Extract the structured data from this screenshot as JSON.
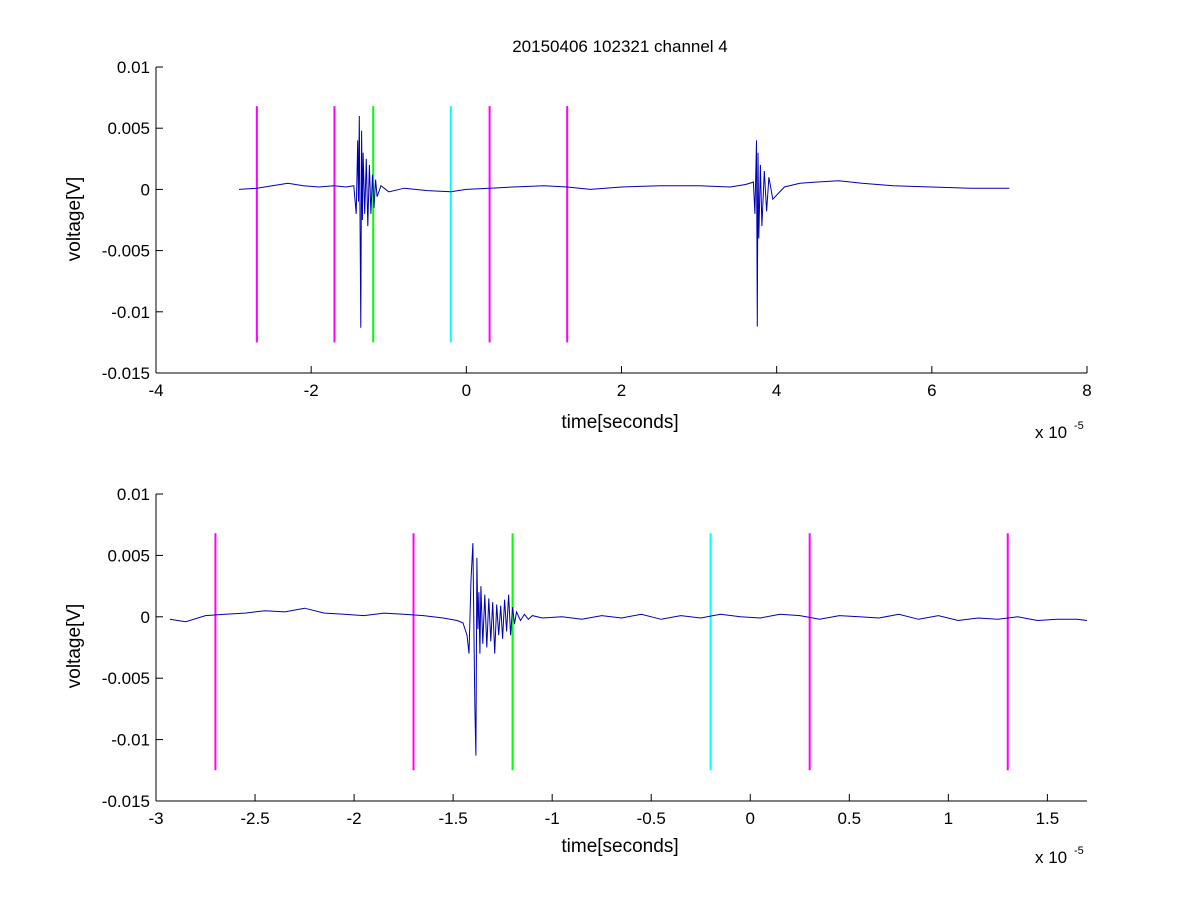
{
  "figure": {
    "title": "20150406 102321 channel 4",
    "signal_color": "#0000b4"
  },
  "chart_data": [
    {
      "type": "line",
      "title": "20150406 102321 channel 4",
      "xlabel": "time[seconds]",
      "ylabel": "voltage[V]",
      "x_exponent_label": "x 10",
      "x_exponent": "-5",
      "x_scale": 1e-05,
      "xlim": [
        -4,
        8
      ],
      "ylim": [
        -0.015,
        0.01
      ],
      "xticks": [
        -4,
        -2,
        0,
        2,
        4,
        6,
        8
      ],
      "xtick_labels": [
        "-4",
        "-2",
        "0",
        "2",
        "4",
        "6",
        "8"
      ],
      "yticks": [
        0.01,
        0.005,
        0,
        -0.005,
        -0.01,
        -0.015
      ],
      "ytick_labels": [
        "0.01",
        "0.005",
        "0",
        "-0.005",
        "-0.01",
        "-0.015"
      ],
      "grid": false,
      "series": [
        {
          "x": [
            -2.93,
            -2.7,
            -2.5,
            -2.3,
            -2.1,
            -1.9,
            -1.7,
            -1.55,
            -1.45,
            -1.42,
            -1.4,
            -1.39,
            -1.38,
            -1.37,
            -1.36,
            -1.35,
            -1.34,
            -1.33,
            -1.31,
            -1.29,
            -1.27,
            -1.25,
            -1.23,
            -1.21,
            -1.19,
            -1.17,
            -1.15,
            -1.1,
            -1.0,
            -0.8,
            -0.5,
            -0.2,
            0.0,
            0.3,
            0.6,
            1.0,
            1.3,
            1.6,
            2.0,
            2.5,
            3.0,
            3.4,
            3.6,
            3.7,
            3.72,
            3.74,
            3.75,
            3.76,
            3.77,
            3.79,
            3.81,
            3.84,
            3.87,
            3.9,
            3.95,
            4.1,
            4.3,
            4.5,
            4.8,
            5.1,
            5.5,
            6.0,
            6.5,
            7.0
          ],
          "y": [
            0.0,
            0.0001,
            0.0003,
            0.0005,
            0.0003,
            0.0002,
            0.0003,
            0.0002,
            0.0003,
            -0.002,
            0.004,
            -0.001,
            0.006,
            -0.002,
            -0.0113,
            0.0048,
            -0.0025,
            0.003,
            -0.002,
            0.0025,
            -0.003,
            0.002,
            -0.002,
            0.0012,
            -0.0015,
            0.0008,
            -0.0006,
            0.0003,
            -0.0002,
            0.0001,
            -0.0001,
            -0.0002,
            0.0,
            0.0001,
            0.0002,
            0.0003,
            0.0002,
            0.0,
            0.0002,
            0.0003,
            0.0003,
            0.0002,
            0.0004,
            0.0006,
            -0.002,
            0.004,
            -0.0112,
            0.003,
            -0.004,
            0.002,
            -0.003,
            0.0015,
            -0.0018,
            0.001,
            -0.0008,
            0.0002,
            0.0005,
            0.0006,
            0.0007,
            0.0005,
            0.0003,
            0.0002,
            0.0001,
            0.0001
          ]
        }
      ],
      "markers": [
        {
          "x": -2.7,
          "color": "#ff00ff"
        },
        {
          "x": -1.7,
          "color": "#ff00ff"
        },
        {
          "x": -1.2,
          "color": "#00ff00"
        },
        {
          "x": -0.2,
          "color": "#00ffff"
        },
        {
          "x": 0.3,
          "color": "#ff00ff"
        },
        {
          "x": 1.3,
          "color": "#ff00ff"
        }
      ],
      "marker_range": [
        -0.0125,
        0.0068
      ]
    },
    {
      "type": "line",
      "title": "",
      "xlabel": "time[seconds]",
      "ylabel": "voltage[V]",
      "x_exponent_label": "x 10",
      "x_exponent": "-5",
      "x_scale": 1e-05,
      "xlim": [
        -3.0,
        1.7
      ],
      "ylim": [
        -0.015,
        0.01
      ],
      "xticks": [
        -3,
        -2.5,
        -2,
        -1.5,
        -1,
        -0.5,
        0,
        0.5,
        1,
        1.5
      ],
      "xtick_labels": [
        "-3",
        "-2.5",
        "-2",
        "-1.5",
        "-1",
        "-0.5",
        "0",
        "0.5",
        "1",
        "1.5"
      ],
      "yticks": [
        0.01,
        0.005,
        0,
        -0.005,
        -0.01,
        -0.015
      ],
      "ytick_labels": [
        "0.01",
        "0.005",
        "0",
        "-0.005",
        "-0.01",
        "-0.015"
      ],
      "grid": false,
      "series": [
        {
          "x": [
            -2.93,
            -2.85,
            -2.75,
            -2.65,
            -2.55,
            -2.45,
            -2.35,
            -2.25,
            -2.15,
            -2.05,
            -1.95,
            -1.85,
            -1.75,
            -1.65,
            -1.55,
            -1.48,
            -1.45,
            -1.43,
            -1.42,
            -1.41,
            -1.4,
            -1.395,
            -1.39,
            -1.385,
            -1.38,
            -1.375,
            -1.37,
            -1.365,
            -1.36,
            -1.35,
            -1.34,
            -1.33,
            -1.32,
            -1.31,
            -1.3,
            -1.29,
            -1.28,
            -1.27,
            -1.26,
            -1.25,
            -1.24,
            -1.23,
            -1.22,
            -1.21,
            -1.2,
            -1.19,
            -1.18,
            -1.16,
            -1.14,
            -1.12,
            -1.1,
            -1.05,
            -0.95,
            -0.85,
            -0.75,
            -0.65,
            -0.55,
            -0.45,
            -0.35,
            -0.25,
            -0.15,
            -0.05,
            0.05,
            0.15,
            0.25,
            0.35,
            0.45,
            0.55,
            0.65,
            0.75,
            0.85,
            0.95,
            1.05,
            1.15,
            1.25,
            1.35,
            1.45,
            1.55,
            1.65,
            1.7
          ],
          "y": [
            -0.0002,
            -0.0004,
            0.0001,
            0.0002,
            0.0003,
            0.0005,
            0.0004,
            0.0007,
            0.0003,
            0.0002,
            0.0001,
            0.0003,
            0.0002,
            0.0001,
            -0.0001,
            -0.0003,
            -0.0005,
            -0.0015,
            -0.003,
            0.003,
            0.006,
            -0.001,
            -0.0075,
            -0.0113,
            0.0048,
            -0.001,
            0.002,
            -0.003,
            0.0025,
            -0.0022,
            0.0018,
            -0.0025,
            0.0015,
            -0.002,
            0.0012,
            -0.003,
            0.001,
            -0.0015,
            0.0009,
            -0.0018,
            0.0014,
            -0.0012,
            0.0018,
            -0.0015,
            0.0008,
            -0.0006,
            0.0004,
            -0.0003,
            0.0002,
            -0.0002,
            0.0001,
            -0.0001,
            0.0,
            -0.0002,
            0.0001,
            -0.0001,
            0.0002,
            -0.0002,
            0.0001,
            -0.0001,
            0.0002,
            0.0,
            -0.0001,
            0.0002,
            0.0001,
            -0.0002,
            0.0001,
            0.0,
            -0.0001,
            0.0002,
            -0.0002,
            0.0001,
            -0.0003,
            -0.0001,
            -0.0002,
            0.0,
            -0.0003,
            -0.0002,
            -0.0002,
            -0.0003
          ]
        }
      ],
      "markers": [
        {
          "x": -2.7,
          "color": "#ff00ff"
        },
        {
          "x": -1.7,
          "color": "#ff00ff"
        },
        {
          "x": -1.2,
          "color": "#00ff00"
        },
        {
          "x": -0.2,
          "color": "#00ffff"
        },
        {
          "x": 0.3,
          "color": "#ff00ff"
        },
        {
          "x": 1.3,
          "color": "#ff00ff"
        }
      ],
      "marker_range": [
        -0.0125,
        0.0068
      ]
    }
  ]
}
